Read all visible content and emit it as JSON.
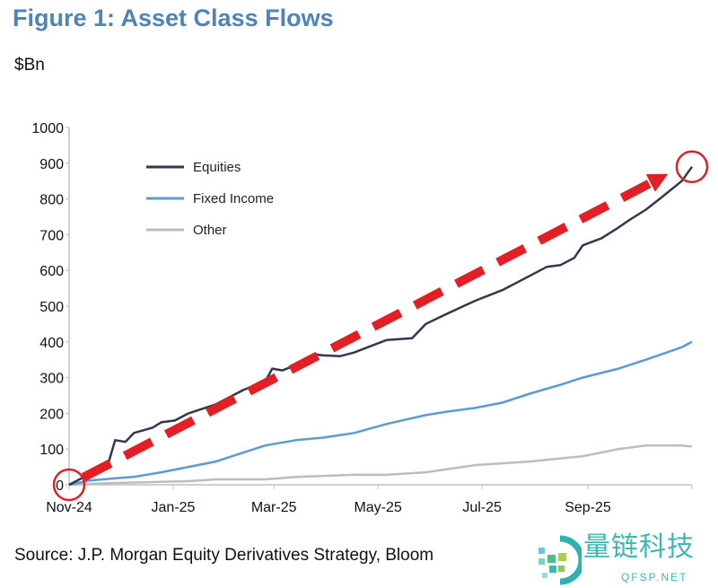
{
  "title": "Figure 1: Asset Class Flows",
  "unit_label": "$Bn",
  "source": "Source: J.P. Morgan Equity Derivatives Strategy, Bloom",
  "watermark": {
    "text": "量链科技",
    "subtext": "QFSP.NET"
  },
  "chart_data": {
    "type": "line",
    "title": "Figure 1: Asset Class Flows",
    "ylabel": "$Bn",
    "xlabel": "",
    "ylim": [
      0,
      1000
    ],
    "xlim": [
      "2024-11-01",
      "2025-11-01"
    ],
    "yticks": [
      0,
      100,
      200,
      300,
      400,
      500,
      600,
      700,
      800,
      900,
      1000
    ],
    "xticks": [
      {
        "date": "2024-11-01",
        "label": "Nov-24"
      },
      {
        "date": "2025-01-01",
        "label": "Jan-25"
      },
      {
        "date": "2025-03-01",
        "label": "Mar-25"
      },
      {
        "date": "2025-05-01",
        "label": "May-25"
      },
      {
        "date": "2025-07-01",
        "label": "Jul-25"
      },
      {
        "date": "2025-09-01",
        "label": "Sep-25"
      },
      {
        "date": "2025-11-01",
        "label": ""
      }
    ],
    "grid": false,
    "legend_position": "top-left",
    "series": [
      {
        "name": "Equities",
        "color": "#2e3a4e",
        "points": [
          [
            "2024-11-01",
            0
          ],
          [
            "2024-11-13",
            30
          ],
          [
            "2024-11-24",
            60
          ],
          [
            "2024-11-28",
            125
          ],
          [
            "2024-12-04",
            120
          ],
          [
            "2024-12-09",
            145
          ],
          [
            "2024-12-20",
            160
          ],
          [
            "2024-12-25",
            175
          ],
          [
            "2025-01-02",
            180
          ],
          [
            "2025-01-10",
            200
          ],
          [
            "2025-01-26",
            225
          ],
          [
            "2025-02-11",
            265
          ],
          [
            "2025-02-24",
            290
          ],
          [
            "2025-02-28",
            325
          ],
          [
            "2025-03-06",
            320
          ],
          [
            "2025-03-14",
            335
          ],
          [
            "2025-03-25",
            365
          ],
          [
            "2025-03-30",
            362
          ],
          [
            "2025-04-09",
            360
          ],
          [
            "2025-04-17",
            370
          ],
          [
            "2025-04-25",
            385
          ],
          [
            "2025-05-06",
            405
          ],
          [
            "2025-05-21",
            410
          ],
          [
            "2025-05-29",
            450
          ],
          [
            "2025-06-11",
            480
          ],
          [
            "2025-06-27",
            515
          ],
          [
            "2025-07-13",
            545
          ],
          [
            "2025-07-29",
            585
          ],
          [
            "2025-08-08",
            610
          ],
          [
            "2025-08-16",
            615
          ],
          [
            "2025-08-24",
            635
          ],
          [
            "2025-08-29",
            670
          ],
          [
            "2025-09-09",
            690
          ],
          [
            "2025-09-19",
            720
          ],
          [
            "2025-09-25",
            740
          ],
          [
            "2025-10-05",
            770
          ],
          [
            "2025-10-13",
            800
          ],
          [
            "2025-10-26",
            850
          ],
          [
            "2025-11-01",
            890
          ]
        ]
      },
      {
        "name": "Fixed Income",
        "color": "#5b9bd5",
        "points": [
          [
            "2024-11-01",
            0
          ],
          [
            "2024-11-13",
            12
          ],
          [
            "2024-11-28",
            18
          ],
          [
            "2024-12-09",
            22
          ],
          [
            "2024-12-25",
            35
          ],
          [
            "2025-01-10",
            50
          ],
          [
            "2025-01-26",
            65
          ],
          [
            "2025-02-11",
            90
          ],
          [
            "2025-02-24",
            110
          ],
          [
            "2025-03-14",
            125
          ],
          [
            "2025-03-30",
            132
          ],
          [
            "2025-04-17",
            145
          ],
          [
            "2025-05-06",
            170
          ],
          [
            "2025-05-29",
            195
          ],
          [
            "2025-06-11",
            205
          ],
          [
            "2025-06-27",
            215
          ],
          [
            "2025-07-13",
            230
          ],
          [
            "2025-07-29",
            255
          ],
          [
            "2025-08-16",
            280
          ],
          [
            "2025-08-29",
            300
          ],
          [
            "2025-09-19",
            325
          ],
          [
            "2025-10-05",
            350
          ],
          [
            "2025-10-26",
            385
          ],
          [
            "2025-11-01",
            400
          ]
        ]
      },
      {
        "name": "Other",
        "color": "#bdbdbd",
        "points": [
          [
            "2024-11-01",
            0
          ],
          [
            "2024-11-28",
            5
          ],
          [
            "2025-01-10",
            10
          ],
          [
            "2025-01-26",
            15
          ],
          [
            "2025-02-24",
            15
          ],
          [
            "2025-03-14",
            22
          ],
          [
            "2025-04-17",
            28
          ],
          [
            "2025-05-06",
            28
          ],
          [
            "2025-05-29",
            35
          ],
          [
            "2025-06-27",
            55
          ],
          [
            "2025-07-29",
            65
          ],
          [
            "2025-08-29",
            80
          ],
          [
            "2025-09-19",
            100
          ],
          [
            "2025-10-05",
            110
          ],
          [
            "2025-10-26",
            110
          ],
          [
            "2025-11-01",
            107
          ]
        ]
      }
    ],
    "annotations": {
      "trend_arrow": {
        "from": [
          "2024-11-01",
          0
        ],
        "to": [
          "2025-10-18",
          870
        ],
        "color": "#e31e24",
        "style": "dashed"
      },
      "circles": [
        [
          "2024-11-01",
          0
        ],
        [
          "2025-11-01",
          890
        ]
      ]
    }
  }
}
